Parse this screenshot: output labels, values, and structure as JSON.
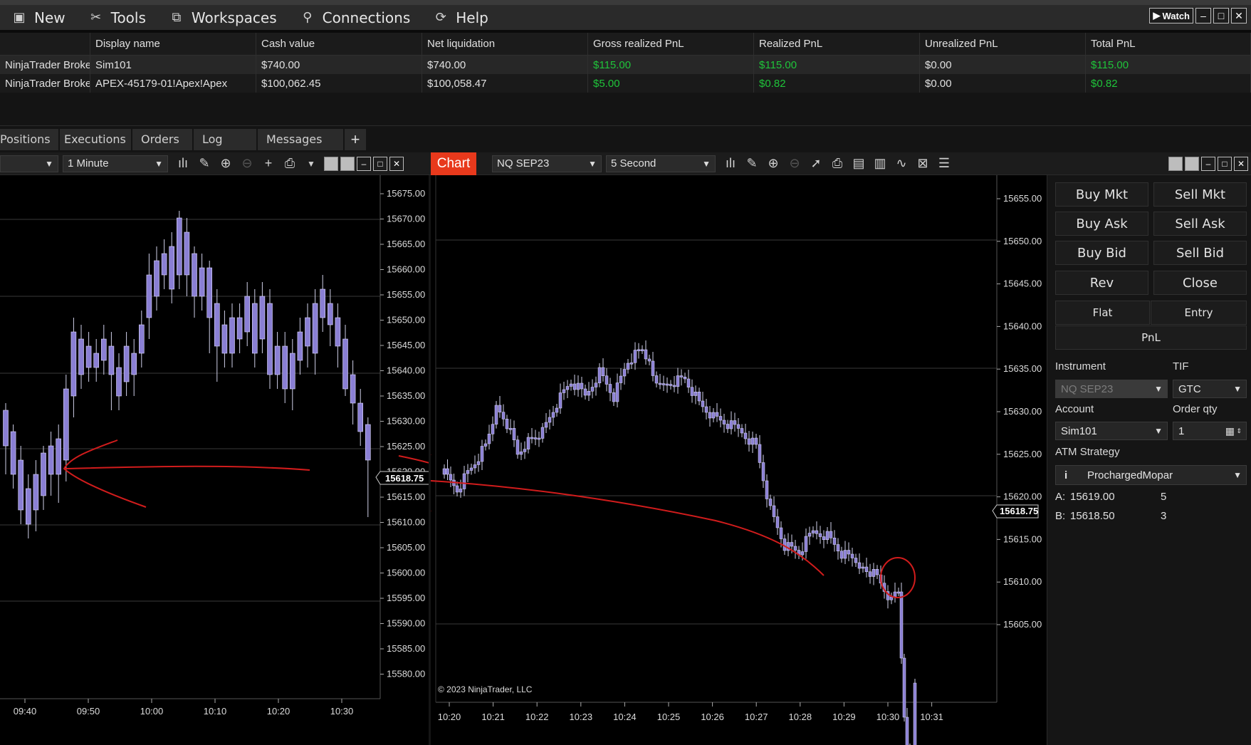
{
  "menu": {
    "items": [
      {
        "label": "New",
        "icon": "new-window-icon"
      },
      {
        "label": "Tools",
        "icon": "tools-icon"
      },
      {
        "label": "Workspaces",
        "icon": "workspaces-icon"
      },
      {
        "label": "Connections",
        "icon": "plug-icon"
      },
      {
        "label": "Help",
        "icon": "help-icon"
      }
    ],
    "watch_label": "Watch"
  },
  "accounts": {
    "columns": [
      "",
      "Display name",
      "Cash value",
      "Net liquidation",
      "Gross realized PnL",
      "Realized PnL",
      "Unrealized PnL",
      "Total PnL"
    ],
    "rows": [
      [
        "NinjaTrader Brokerage",
        "Sim101",
        "$740.00",
        "$740.00",
        "$115.00",
        "$115.00",
        "$0.00",
        "$115.00"
      ],
      [
        "NinjaTrader Brokerage",
        "APEX-45179-01!Apex!Apex",
        "$100,062.45",
        "$100,058.47",
        "$5.00",
        "$0.82",
        "$0.00",
        "$0.82"
      ]
    ]
  },
  "tabs": [
    "Positions",
    "Executions",
    "Orders",
    "Log",
    "Messages"
  ],
  "left_chart": {
    "instrument": "",
    "interval": "1 Minute",
    "y_ticks": [
      "15675.00",
      "15670.00",
      "15665.00",
      "15660.00",
      "15655.00",
      "15650.00",
      "15645.00",
      "15640.00",
      "15635.00",
      "15630.00",
      "15625.00",
      "15620.00",
      "15615.00",
      "15610.00",
      "15605.00",
      "15600.00",
      "15595.00",
      "15590.00",
      "15585.00",
      "15580.00"
    ],
    "x_ticks": [
      "09:40",
      "09:50",
      "10:00",
      "10:10",
      "10:20",
      "10:30"
    ],
    "last_price": "15618.75"
  },
  "right_chart": {
    "tab_label": "Chart",
    "instrument": "NQ SEP23",
    "interval": "5 Second",
    "y_ticks": [
      "15655.00",
      "15650.00",
      "15645.00",
      "15640.00",
      "15635.00",
      "15630.00",
      "15625.00",
      "15620.00",
      "15615.00",
      "15610.00",
      "15605.00"
    ],
    "x_ticks": [
      "10:20",
      "10:21",
      "10:22",
      "10:23",
      "10:24",
      "10:25",
      "10:26",
      "10:27",
      "10:28",
      "10:29",
      "10:30",
      "10:31"
    ],
    "last_price": "15618.75",
    "copyright": "© 2023 NinjaTrader, LLC"
  },
  "trader": {
    "buttons": [
      "Buy Mkt",
      "Sell Mkt",
      "Buy Ask",
      "Sell Ask",
      "Buy Bid",
      "Sell Bid",
      "Rev",
      "Close"
    ],
    "flat_label": "Flat",
    "entry_label": "Entry",
    "pnl_label": "PnL",
    "instrument_label": "Instrument",
    "instrument_value": "NQ SEP23",
    "tif_label": "TIF",
    "tif_value": "GTC",
    "account_label": "Account",
    "account_value": "Sim101",
    "order_qty_label": "Order qty",
    "order_qty_value": "1",
    "atm_label": "ATM Strategy",
    "atm_value": "ProchargedMopar",
    "ask_label": "A:",
    "ask_price": "15619.00",
    "ask_size": "5",
    "bid_label": "B:",
    "bid_price": "15618.50",
    "bid_size": "3"
  },
  "colors": {
    "candle": "#8a7fd4",
    "annotation": "#d11c1c",
    "accent": "#e8391c",
    "pnl_positive": "#1fc43a"
  }
}
